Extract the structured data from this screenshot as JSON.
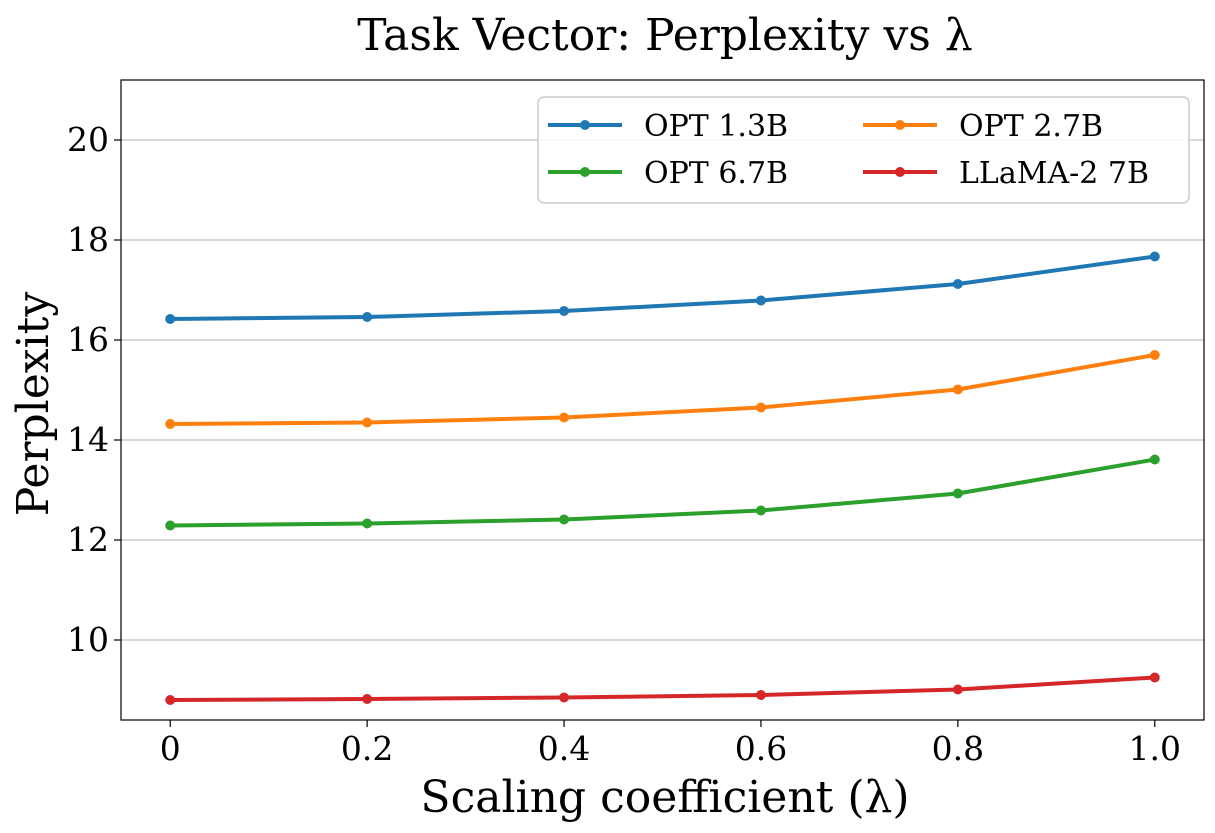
{
  "chart_data": {
    "type": "line",
    "title": "Task Vector: Perplexity vs λ",
    "xlabel": "Scaling coefficient (λ)",
    "ylabel": "Perplexity",
    "x": [
      0,
      0.2,
      0.4,
      0.6,
      0.8,
      1.0
    ],
    "x_tick_labels": [
      "0",
      "0.2",
      "0.4",
      "0.6",
      "0.8",
      "1.0"
    ],
    "xlim": [
      -0.05,
      1.05
    ],
    "ylim": [
      8.4,
      21.2
    ],
    "y_ticks": [
      10,
      12,
      14,
      16,
      18,
      20
    ],
    "y_tick_labels": [
      "10",
      "12",
      "14",
      "16",
      "18",
      "20"
    ],
    "grid": "horizontal",
    "legend_position": "top-right",
    "legend_columns": 2,
    "series": [
      {
        "name": "OPT 1.3B",
        "color": "#1f77b4",
        "values": [
          16.42,
          16.46,
          16.58,
          16.79,
          17.12,
          17.67
        ]
      },
      {
        "name": "OPT 2.7B",
        "color": "#ff7f0e",
        "values": [
          14.32,
          14.35,
          14.45,
          14.65,
          15.01,
          15.7
        ]
      },
      {
        "name": "OPT 6.7B",
        "color": "#2ca02c",
        "values": [
          12.29,
          12.33,
          12.41,
          12.59,
          12.93,
          13.61
        ]
      },
      {
        "name": "LLaMA-2 7B",
        "color": "#d62728",
        "values": [
          8.8,
          8.82,
          8.85,
          8.9,
          9.01,
          9.25
        ]
      }
    ]
  }
}
